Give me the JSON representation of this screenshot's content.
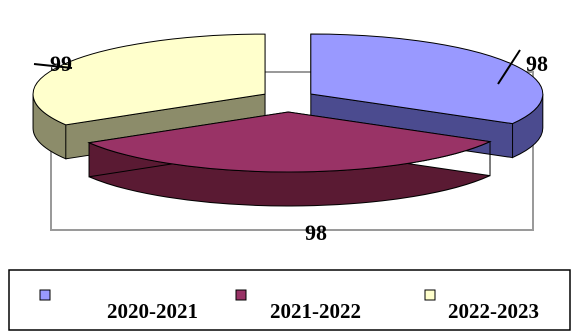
{
  "chart_data": {
    "type": "pie",
    "style": "3d-exploded",
    "title": "",
    "series": [
      {
        "name": "2020-2021",
        "value": 98,
        "color": "#9999ff",
        "side_color": "#4b4b8f",
        "label": "98"
      },
      {
        "name": "2021-2022",
        "value": 98,
        "color": "#993366",
        "side_color": "#5a1a33",
        "label": "98"
      },
      {
        "name": "2022-2023",
        "value": 99,
        "color": "#ffffcc",
        "side_color": "#8c8c6a",
        "label": "99"
      }
    ],
    "legend": {
      "placement": "bottom"
    }
  }
}
